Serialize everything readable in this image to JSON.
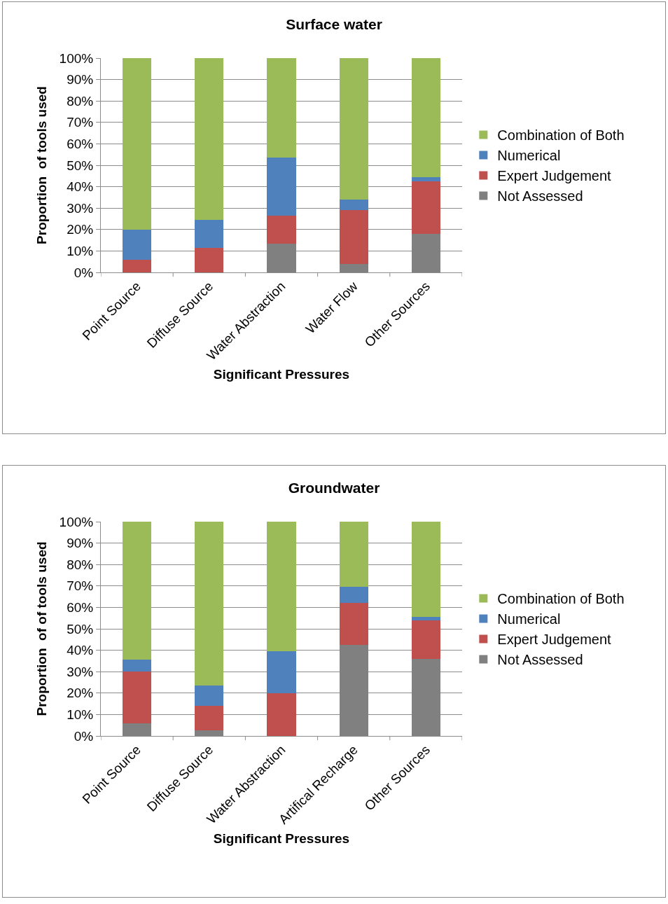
{
  "chart_data": [
    {
      "type": "bar",
      "title": "Surface water",
      "xlabel": "Significant Pressures",
      "ylabel": "Proportion  of tools used",
      "stacked": true,
      "grid": "y",
      "legend": "right",
      "categories": [
        "Point Source",
        "Diffuse Source",
        "Water Abstraction",
        "Water Flow",
        "Other Sources"
      ],
      "ylim": [
        0,
        100
      ],
      "yticks": [
        {
          "value": 0,
          "label": "0%"
        },
        {
          "value": 10,
          "label": "10%"
        },
        {
          "value": 20,
          "label": "20%"
        },
        {
          "value": 30,
          "label": "30%"
        },
        {
          "value": 40,
          "label": "40%"
        },
        {
          "value": 50,
          "label": "50%"
        },
        {
          "value": 60,
          "label": "60%"
        },
        {
          "value": 70,
          "label": "70%"
        },
        {
          "value": 80,
          "label": "80%"
        },
        {
          "value": 90,
          "label": "90%"
        },
        {
          "value": 100,
          "label": "100%"
        }
      ],
      "series": [
        {
          "name": "Not Assessed",
          "color": "#808080",
          "values": [
            0,
            0,
            13.5,
            4,
            18
          ]
        },
        {
          "name": "Expert Judgement",
          "color": "#c0504d",
          "values": [
            6,
            11.5,
            13,
            25,
            24.5
          ]
        },
        {
          "name": "Numerical",
          "color": "#4f81bd",
          "values": [
            14,
            13,
            27,
            5,
            2
          ]
        },
        {
          "name": "Combination of Both",
          "color": "#9bbb59",
          "values": [
            80,
            75.5,
            46.5,
            66,
            55.5
          ]
        }
      ]
    },
    {
      "type": "bar",
      "title": "Groundwater",
      "xlabel": "Significant Pressures",
      "ylabel": "Proportion  of of tools used",
      "stacked": true,
      "grid": "y",
      "legend": "right",
      "categories": [
        "Point Source",
        "Diffuse Source",
        "Water Abstraction",
        "Artifical Recharge",
        "Other Sources"
      ],
      "ylim": [
        0,
        100
      ],
      "yticks": [
        {
          "value": 0,
          "label": "0%"
        },
        {
          "value": 10,
          "label": "10%"
        },
        {
          "value": 20,
          "label": "20%"
        },
        {
          "value": 30,
          "label": "30%"
        },
        {
          "value": 40,
          "label": "40%"
        },
        {
          "value": 50,
          "label": "50%"
        },
        {
          "value": 60,
          "label": "60%"
        },
        {
          "value": 70,
          "label": "70%"
        },
        {
          "value": 80,
          "label": "80%"
        },
        {
          "value": 90,
          "label": "90%"
        },
        {
          "value": 100,
          "label": "100%"
        }
      ],
      "series": [
        {
          "name": "Not Assessed",
          "color": "#808080",
          "values": [
            6,
            2.5,
            0,
            42.5,
            36
          ]
        },
        {
          "name": "Expert Judgement",
          "color": "#c0504d",
          "values": [
            24,
            11.5,
            20,
            19.5,
            18
          ]
        },
        {
          "name": "Numerical",
          "color": "#4f81bd",
          "values": [
            5.5,
            9.5,
            19.5,
            7.5,
            1.5
          ]
        },
        {
          "name": "Combination of Both",
          "color": "#9bbb59",
          "values": [
            64.5,
            76.5,
            60.5,
            30.5,
            44.5
          ]
        }
      ]
    }
  ]
}
